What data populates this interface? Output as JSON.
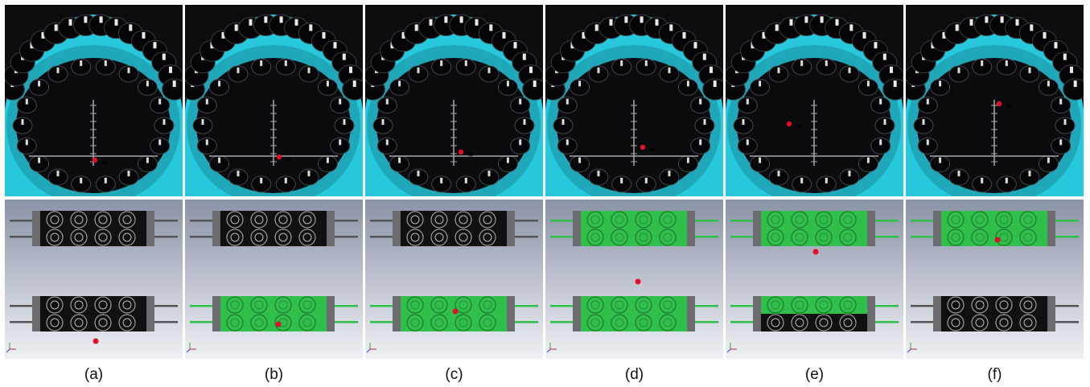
{
  "panels": [
    {
      "label": "(a)",
      "upper_row": "off",
      "lower_row": "off"
    },
    {
      "label": "(b)",
      "upper_row": "off",
      "lower_row": "active"
    },
    {
      "label": "(c)",
      "upper_row": "off",
      "lower_row": "active"
    },
    {
      "label": "(d)",
      "upper_row": "active",
      "lower_row": "active"
    },
    {
      "label": "(e)",
      "upper_row": "active",
      "lower_row": "partial"
    },
    {
      "label": "(f)",
      "upper_row": "active",
      "lower_row": "off"
    }
  ],
  "colors": {
    "rim": "#28c8dc",
    "module": "#111111",
    "active_module": "#2fbf4a",
    "particle": "#e0102a"
  }
}
